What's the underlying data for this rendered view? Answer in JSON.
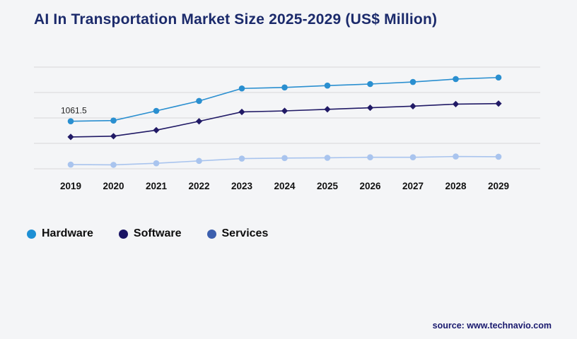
{
  "title": "AI In Transportation Market Size 2025-2029 (US$ Million)",
  "colors": {
    "background": "#f4f5f7",
    "title": "#1b2a6b",
    "grid": "#d8d8da",
    "axis_label": "#111111",
    "source_text": "#19196e"
  },
  "chart_data": {
    "type": "line",
    "title": "AI In Transportation Market Size 2025-2029 (US$ Million)",
    "x": [
      "2019",
      "2020",
      "2021",
      "2022",
      "2023",
      "2024",
      "2025",
      "2026",
      "2027",
      "2028",
      "2029"
    ],
    "series": [
      {
        "name": "Hardware",
        "color": "#2a8fd0",
        "marker": "circle",
        "values": [
          1061.5,
          1075,
          1260,
          1450,
          1690,
          1710,
          1745,
          1775,
          1815,
          1870,
          1900
        ]
      },
      {
        "name": "Software",
        "color": "#211a66",
        "marker": "diamond",
        "values": [
          760,
          775,
          890,
          1060,
          1240,
          1260,
          1290,
          1320,
          1350,
          1390,
          1400
        ]
      },
      {
        "name": "Services",
        "color": "#a9c4ee",
        "marker": "circle",
        "values": [
          230,
          225,
          255,
          300,
          345,
          355,
          360,
          370,
          370,
          385,
          380
        ]
      }
    ],
    "ylim": [
      0,
      2100
    ],
    "grid": "horizontal",
    "gridline_count": 5,
    "legend_position": "bottom-left",
    "annotation": {
      "text": "1061.5",
      "series": "Hardware",
      "x": "2019"
    },
    "xlabel": "",
    "ylabel": ""
  },
  "legend": {
    "items": [
      {
        "label": "Hardware",
        "color": "#1d8fd4"
      },
      {
        "label": "Software",
        "color": "#1a1464"
      },
      {
        "label": "Services",
        "color": "#3c5fae"
      }
    ]
  },
  "source": {
    "label": "source: www.technavio.com"
  }
}
